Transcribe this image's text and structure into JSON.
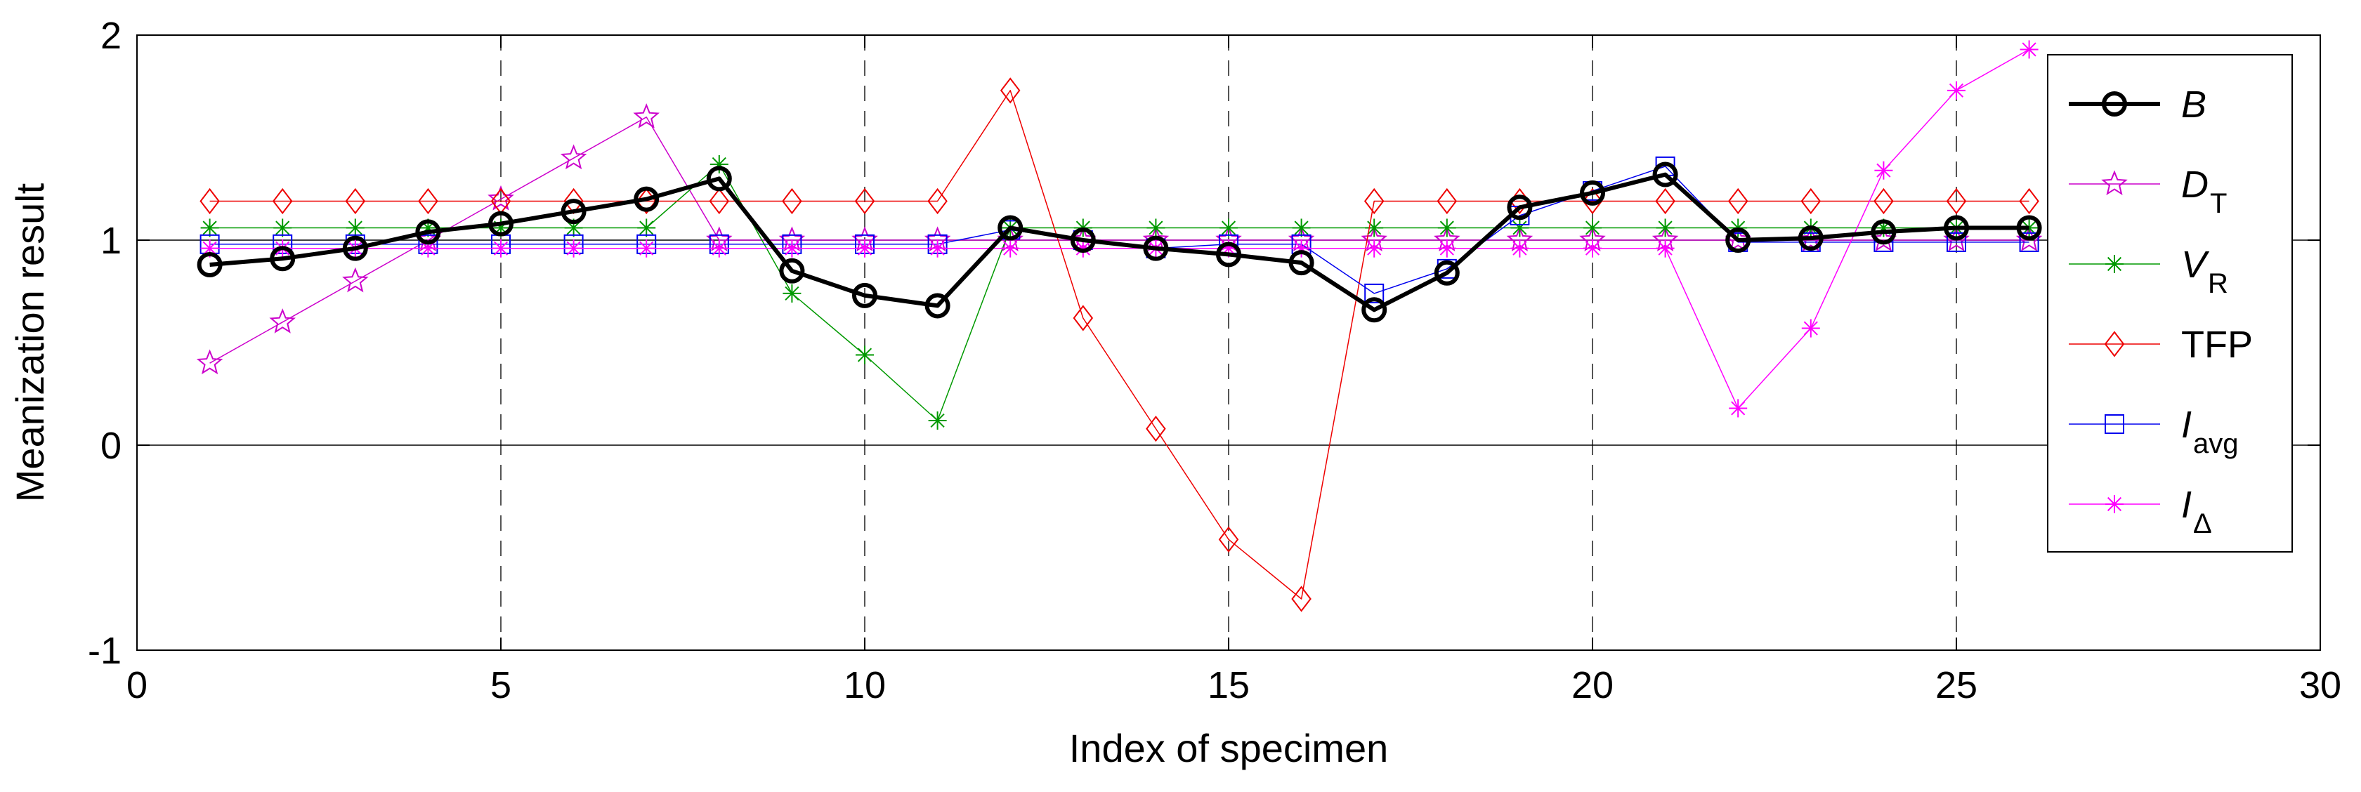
{
  "chart_data": {
    "type": "line",
    "title": "",
    "xlabel": "Index of specimen",
    "ylabel": "Meanization result",
    "xlim": [
      0,
      30
    ],
    "ylim": [
      -1,
      2
    ],
    "xticks": [
      0,
      5,
      10,
      15,
      20,
      25,
      30
    ],
    "yticks": [
      -1,
      0,
      1,
      2
    ],
    "xtick_labels": [
      "0",
      "5",
      "10",
      "15",
      "20",
      "25",
      "30"
    ],
    "ytick_labels": [
      "-1",
      "0",
      "1",
      "2"
    ],
    "vertical_gridlines_at": [
      5,
      10,
      15,
      20,
      25
    ],
    "horizontal_reference_at": [
      0,
      1
    ],
    "legend_position": "top-right",
    "x": [
      1,
      2,
      3,
      4,
      5,
      6,
      7,
      8,
      9,
      10,
      11,
      12,
      13,
      14,
      15,
      16,
      17,
      18,
      19,
      20,
      21,
      22,
      23,
      24,
      25,
      26
    ],
    "series": [
      {
        "name": "B",
        "label_main": "B",
        "label_sub": "",
        "italic": true,
        "color": "#000000",
        "marker": "circle",
        "stroke_width": 6,
        "values": [
          0.88,
          0.91,
          0.96,
          1.04,
          1.08,
          1.14,
          1.2,
          1.3,
          0.85,
          0.73,
          0.68,
          1.06,
          1.0,
          0.96,
          0.93,
          0.89,
          0.66,
          0.84,
          1.16,
          1.23,
          1.32,
          1.0,
          1.01,
          1.04,
          1.06,
          1.06
        ]
      },
      {
        "name": "D_T",
        "label_main": "D",
        "label_sub": "T",
        "italic": true,
        "color": "#cc00cc",
        "marker": "star",
        "stroke_width": 1.5,
        "values": [
          0.4,
          0.6,
          0.8,
          1.0,
          1.2,
          1.4,
          1.6,
          1.0,
          1.0,
          1.0,
          1.0,
          1.0,
          1.0,
          1.0,
          1.0,
          1.0,
          1.0,
          1.0,
          1.0,
          1.0,
          1.0,
          1.0,
          1.0,
          1.0,
          1.0,
          1.0
        ]
      },
      {
        "name": "V_R",
        "label_main": "V",
        "label_sub": "R",
        "italic": true,
        "color": "#009900",
        "marker": "asterisk",
        "stroke_width": 1.5,
        "values": [
          1.06,
          1.06,
          1.06,
          1.06,
          1.06,
          1.06,
          1.06,
          1.37,
          0.74,
          0.44,
          0.12,
          1.06,
          1.06,
          1.06,
          1.06,
          1.06,
          1.06,
          1.06,
          1.06,
          1.06,
          1.06,
          1.06,
          1.06,
          1.06,
          1.06,
          1.06
        ]
      },
      {
        "name": "TFP",
        "label_main": "TFP",
        "label_sub": "",
        "italic": false,
        "color": "#ee0000",
        "marker": "diamond",
        "stroke_width": 1.5,
        "values": [
          1.19,
          1.19,
          1.19,
          1.19,
          1.19,
          1.19,
          1.19,
          1.19,
          1.19,
          1.19,
          1.19,
          1.73,
          0.62,
          0.08,
          -0.46,
          -0.75,
          1.19,
          1.19,
          1.19,
          1.19,
          1.19,
          1.19,
          1.19,
          1.19,
          1.19,
          1.19
        ]
      },
      {
        "name": "I_avg",
        "label_main": "I",
        "label_sub": "avg",
        "italic": true,
        "color": "#0000ee",
        "marker": "square",
        "stroke_width": 1.5,
        "values": [
          0.98,
          0.98,
          0.98,
          0.98,
          0.98,
          0.98,
          0.98,
          0.98,
          0.98,
          0.98,
          0.98,
          1.05,
          1.0,
          0.96,
          0.98,
          0.98,
          0.74,
          0.86,
          1.12,
          1.24,
          1.36,
          0.99,
          0.99,
          0.99,
          0.99,
          0.99
        ]
      },
      {
        "name": "I_Δ",
        "label_main": "I",
        "label_sub": "Δ",
        "italic": true,
        "color": "#ff00ff",
        "marker": "asterisk",
        "stroke_width": 1.5,
        "values": [
          0.96,
          0.96,
          0.96,
          0.96,
          0.96,
          0.96,
          0.96,
          0.96,
          0.96,
          0.96,
          0.96,
          0.96,
          0.96,
          0.96,
          0.96,
          0.96,
          0.96,
          0.96,
          0.96,
          0.96,
          0.96,
          0.18,
          0.57,
          1.34,
          1.73,
          1.93
        ]
      }
    ]
  }
}
